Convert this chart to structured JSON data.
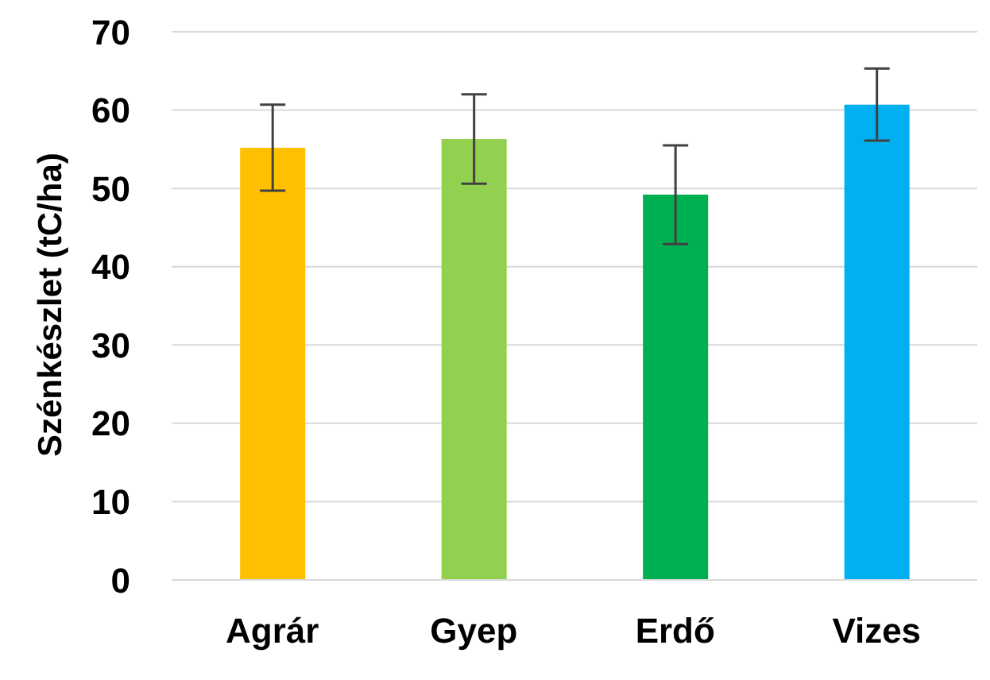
{
  "chart_data": {
    "type": "bar",
    "ylabel": "Szénkészlet (tC/ha)",
    "categories": [
      "Agrár",
      "Gyep",
      "Erdő",
      "Vizes"
    ],
    "values": [
      55.2,
      56.3,
      49.2,
      60.7
    ],
    "errors": [
      5.5,
      5.7,
      6.3,
      4.6
    ],
    "colors": [
      "#ffc000",
      "#92d050",
      "#00b050",
      "#00b0f0"
    ],
    "ylim": [
      0,
      70
    ],
    "yticks": [
      0,
      10,
      20,
      30,
      40,
      50,
      60,
      70
    ],
    "grid": "y"
  }
}
